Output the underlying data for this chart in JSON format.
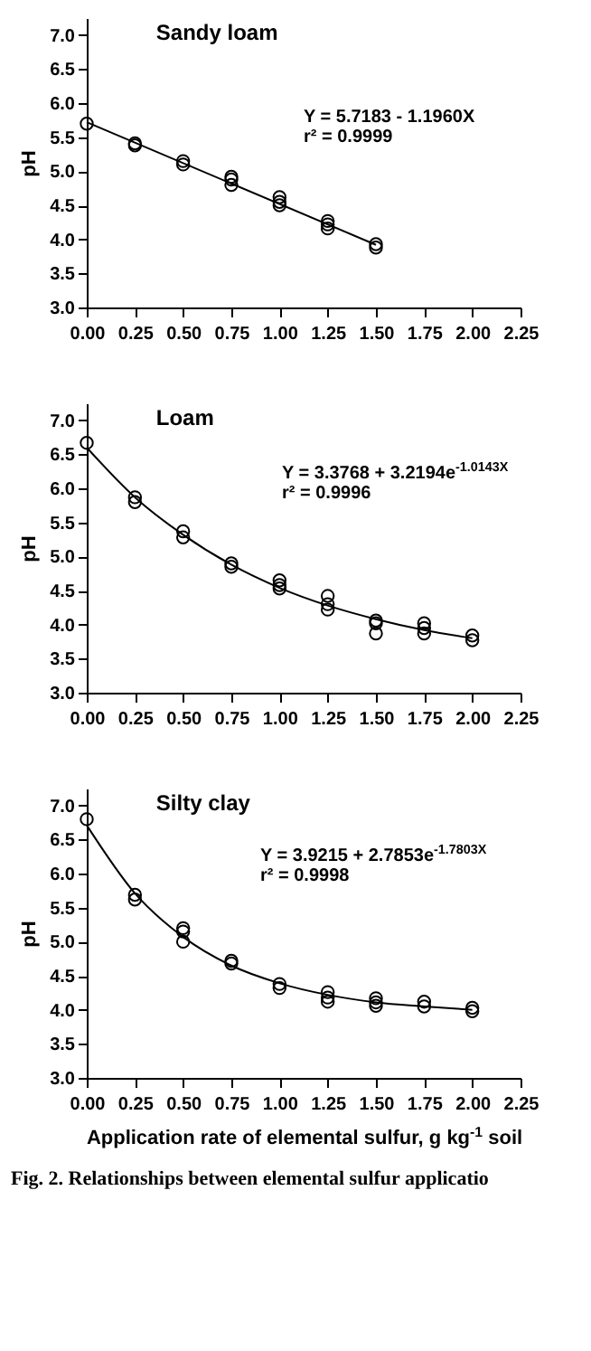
{
  "chart_data": [
    {
      "type": "scatter",
      "title": "Sandy loam",
      "ylabel": "pH",
      "xlim": [
        0,
        2.25
      ],
      "xticks": [
        {
          "value": 0,
          "label": "0.00"
        },
        0.25,
        {
          "value": 0.5,
          "label": "0.50"
        },
        0.75,
        {
          "value": 1,
          "label": "1.00"
        },
        1.25,
        {
          "value": 1.5,
          "label": "1.50"
        },
        1.75,
        {
          "value": 2,
          "label": "2.00"
        },
        2.25
      ],
      "ylim": [
        3,
        7.25
      ],
      "yticks": [
        {
          "value": 3,
          "label": "3.0"
        },
        3.5,
        {
          "value": 4,
          "label": "4.0"
        },
        4.5,
        {
          "value": 5,
          "label": "5.0"
        },
        5.5,
        {
          "value": 6,
          "label": "6.0"
        },
        6.5,
        {
          "value": 7,
          "label": "7.0"
        }
      ],
      "annotations": [
        "Y = 5.7183 - 1.1960X",
        "r² = 0.9999"
      ],
      "series": [
        {
          "marker": "circle",
          "color": "#000000",
          "x": [
            0,
            0.25,
            0.25,
            0.5,
            0.5,
            0.75,
            0.75,
            0.75,
            1,
            1,
            1,
            1.25,
            1.25,
            1.25,
            1.5,
            1.5
          ],
          "values": [
            5.7,
            5.41,
            5.38,
            5.15,
            5.1,
            4.92,
            4.88,
            4.8,
            4.62,
            4.55,
            4.5,
            4.27,
            4.22,
            4.16,
            3.93,
            3.88
          ]
        },
        {
          "type": "line",
          "color": "#000000",
          "x": [
            0,
            1.5
          ],
          "values": [
            5.72,
            3.92
          ]
        }
      ]
    },
    {
      "type": "scatter",
      "title": "Loam",
      "ylabel": "pH",
      "xlim": [
        0,
        2.25
      ],
      "xticks": [
        {
          "value": 0,
          "label": "0.00"
        },
        0.25,
        {
          "value": 0.5,
          "label": "0.50"
        },
        0.75,
        {
          "value": 1,
          "label": "1.00"
        },
        1.25,
        {
          "value": 1.5,
          "label": "1.50"
        },
        1.75,
        {
          "value": 2,
          "label": "2.00"
        },
        2.25
      ],
      "ylim": [
        3,
        7.25
      ],
      "yticks": [
        {
          "value": 3,
          "label": "3.0"
        },
        3.5,
        {
          "value": 4,
          "label": "4.0"
        },
        4.5,
        {
          "value": 5,
          "label": "5.0"
        },
        5.5,
        {
          "value": 6,
          "label": "6.0"
        },
        6.5,
        {
          "value": 7,
          "label": "7.0"
        }
      ],
      "annotations": [
        "Y = 3.3768 + 3.2194e$^{-1.0143X}$",
        "r² = 0.9996"
      ],
      "series": [
        {
          "marker": "circle",
          "color": "#000000",
          "x": [
            0,
            0.25,
            0.25,
            0.5,
            0.5,
            0.75,
            0.75,
            1,
            1,
            1,
            1.25,
            1.25,
            1.25,
            1.5,
            1.5,
            1.5,
            1.75,
            1.75,
            1.75,
            2,
            2
          ],
          "values": [
            6.67,
            5.87,
            5.8,
            5.37,
            5.28,
            4.9,
            4.85,
            4.65,
            4.58,
            4.53,
            4.42,
            4.3,
            4.22,
            4.06,
            4.02,
            3.87,
            4.02,
            3.95,
            3.87,
            3.84,
            3.77
          ]
        },
        {
          "type": "line",
          "color": "#000000",
          "x": [
            0,
            0.25,
            0.5,
            0.75,
            1,
            1.25,
            1.5,
            1.75,
            2
          ],
          "values": [
            6.6,
            5.87,
            5.32,
            4.88,
            4.54,
            4.28,
            4.08,
            3.92,
            3.8
          ]
        }
      ]
    },
    {
      "type": "scatter",
      "title": "Silty clay",
      "xlabel": "Application rate of elemental sulfur, g kg$^{-1}$ soil",
      "ylabel": "pH",
      "xlim": [
        0,
        2.25
      ],
      "xticks": [
        {
          "value": 0,
          "label": "0.00"
        },
        0.25,
        {
          "value": 0.5,
          "label": "0.50"
        },
        0.75,
        {
          "value": 1,
          "label": "1.00"
        },
        1.25,
        {
          "value": 1.5,
          "label": "1.50"
        },
        1.75,
        {
          "value": 2,
          "label": "2.00"
        },
        2.25
      ],
      "ylim": [
        3,
        7.25
      ],
      "yticks": [
        {
          "value": 3,
          "label": "3.0"
        },
        3.5,
        {
          "value": 4,
          "label": "4.0"
        },
        4.5,
        {
          "value": 5,
          "label": "5.0"
        },
        5.5,
        {
          "value": 6,
          "label": "6.0"
        },
        6.5,
        {
          "value": 7,
          "label": "7.0"
        }
      ],
      "annotations": [
        "Y = 3.9215 + 2.7853e$^{-1.7803X}$",
        "r² = 0.9998",
        "Fig. 2. Relationships between elemental sulfur applicatio"
      ],
      "series": [
        {
          "marker": "circle",
          "color": "#000000",
          "x": [
            0,
            0.25,
            0.25,
            0.5,
            0.5,
            0.5,
            0.75,
            0.75,
            1,
            1,
            1.25,
            1.25,
            1.25,
            1.5,
            1.5,
            1.5,
            1.75,
            1.75,
            2,
            2
          ],
          "values": [
            6.8,
            5.69,
            5.62,
            5.2,
            5.15,
            5.0,
            4.72,
            4.68,
            4.38,
            4.32,
            4.26,
            4.18,
            4.12,
            4.17,
            4.11,
            4.06,
            4.12,
            4.05,
            4.03,
            3.98
          ]
        },
        {
          "type": "line",
          "color": "#000000",
          "x": [
            0,
            0.25,
            0.5,
            0.75,
            1,
            1.25,
            1.5,
            1.75,
            2
          ],
          "values": [
            6.71,
            5.71,
            5.07,
            4.65,
            4.39,
            4.22,
            4.11,
            4.05,
            4.0
          ]
        }
      ]
    }
  ]
}
